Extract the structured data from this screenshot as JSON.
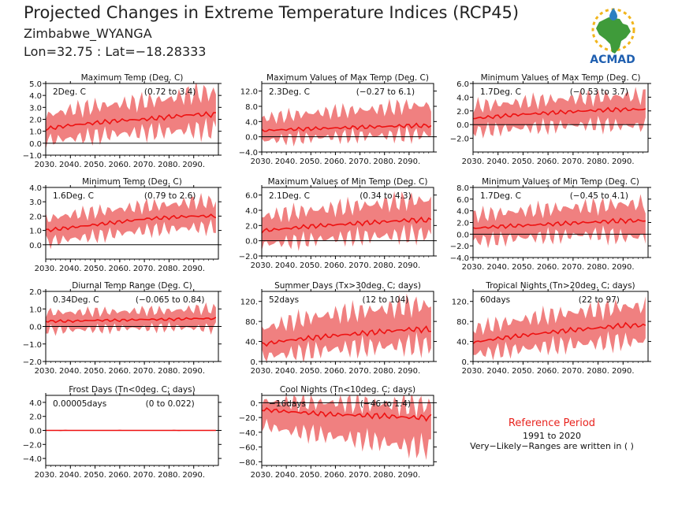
{
  "header": {
    "title": "Projected Changes in Extreme Temperature Indices (RCP45)",
    "location": "Zimbabwe_WYANGA",
    "coords": "Lon=32.75 : Lat=−18.28333"
  },
  "logo": {
    "text": "ACMAD",
    "icon": "africa-map-logo-icon",
    "colors": {
      "africa": "#3f9b3a",
      "sun": "#f1b51c",
      "drop": "#2c7fc1",
      "text": "#1f5fb0"
    }
  },
  "legend": {
    "title": "Reference Period",
    "years": "1991 to 2020",
    "note": "Very−Likely−Ranges are written in ( )"
  },
  "colors": {
    "band": "#f08080",
    "line": "#ee1111",
    "zero": "#000000",
    "title_red": "#e8231e"
  },
  "chart_data": [
    {
      "type": "area",
      "title": "Maximum Temp (Deg. C)",
      "summary": "2Deg. C",
      "range": "(0.72 to 3.4)",
      "x": [
        2030,
        2040,
        2050,
        2060,
        2070,
        2080,
        2090
      ],
      "x_tick_labels": [
        "2030.",
        "2040.",
        "2050.",
        "2060.",
        "2070.",
        "2080.",
        "2090."
      ],
      "ylim": [
        -1.0,
        5.0
      ],
      "y_ticks": [
        -1.0,
        0.0,
        1.0,
        2.0,
        3.0,
        4.0,
        5.0
      ],
      "y_tick_labels": [
        "−1.0",
        "0.0",
        "1.0",
        "2.0",
        "3.0",
        "4.0",
        "5.0"
      ],
      "series": [
        {
          "name": "mean",
          "values": [
            1.2,
            1.5,
            1.7,
            1.9,
            2.0,
            2.2,
            2.4
          ]
        },
        {
          "name": "lower",
          "values": [
            0.2,
            0.4,
            0.6,
            0.8,
            0.9,
            1.0,
            1.1
          ]
        },
        {
          "name": "upper",
          "values": [
            2.3,
            2.8,
            3.1,
            3.3,
            3.5,
            3.7,
            4.2
          ]
        }
      ]
    },
    {
      "type": "area",
      "title": "Maximum Values of Max Temp (Deg. C)",
      "summary": "2.3Deg. C",
      "range": "(−0.27 to 6.1)",
      "x": [
        2030,
        2040,
        2050,
        2060,
        2070,
        2080,
        2090
      ],
      "x_tick_labels": [
        "2030.",
        "2040.",
        "2050.",
        "2060.",
        "2070.",
        "2080.",
        "2090."
      ],
      "ylim": [
        -4.0,
        14.0
      ],
      "y_ticks": [
        -4.0,
        0.0,
        4.0,
        8.0,
        12.0
      ],
      "y_tick_labels": [
        "−4.0",
        "0.0",
        "4.0",
        "8.0",
        "12.0"
      ],
      "series": [
        {
          "name": "mean",
          "values": [
            1.6,
            1.9,
            2.1,
            2.3,
            2.5,
            2.7,
            2.9
          ]
        },
        {
          "name": "lower",
          "values": [
            -1.0,
            -0.6,
            -0.3,
            0.0,
            0.2,
            0.3,
            0.5
          ]
        },
        {
          "name": "upper",
          "values": [
            4.8,
            5.5,
            6.2,
            6.6,
            7.0,
            7.4,
            8.2
          ]
        }
      ]
    },
    {
      "type": "area",
      "title": "Minimum Values of Max Temp (Deg. C)",
      "summary": "1.7Deg. C",
      "range": "(−0.53 to 3.7)",
      "x": [
        2030,
        2040,
        2050,
        2060,
        2070,
        2080,
        2090
      ],
      "x_tick_labels": [
        "2030.",
        "2040.",
        "2050.",
        "2060.",
        "2070.",
        "2080.",
        "2090."
      ],
      "ylim": [
        -4.0,
        6.0
      ],
      "y_ticks": [
        -2.0,
        0.0,
        2.0,
        4.0,
        6.0
      ],
      "y_tick_labels": [
        "−2.0",
        "0.0",
        "2.0",
        "4.0",
        "6.0"
      ],
      "series": [
        {
          "name": "mean",
          "values": [
            0.9,
            1.2,
            1.5,
            1.7,
            1.9,
            2.1,
            2.2
          ]
        },
        {
          "name": "lower",
          "values": [
            -1.0,
            -0.7,
            -0.5,
            -0.3,
            -0.1,
            0.0,
            -0.2
          ]
        },
        {
          "name": "upper",
          "values": [
            2.7,
            3.0,
            3.3,
            3.6,
            3.8,
            4.0,
            4.2
          ]
        }
      ]
    },
    {
      "type": "area",
      "title": "Minimum Temp (Deg. C)",
      "summary": "1.6Deg. C",
      "range": "(0.79 to 2.6)",
      "x": [
        2030,
        2040,
        2050,
        2060,
        2070,
        2080,
        2090
      ],
      "x_tick_labels": [
        "2030.",
        "2040.",
        "2050.",
        "2060.",
        "2070.",
        "2080.",
        "2090."
      ],
      "ylim": [
        -1.0,
        4.0
      ],
      "y_ticks": [
        0.0,
        1.0,
        2.0,
        3.0,
        4.0
      ],
      "y_tick_labels": [
        "0.0",
        "1.0",
        "2.0",
        "3.0",
        "4.0"
      ],
      "series": [
        {
          "name": "mean",
          "values": [
            1.0,
            1.2,
            1.4,
            1.6,
            1.8,
            1.9,
            2.0
          ]
        },
        {
          "name": "lower",
          "values": [
            0.2,
            0.4,
            0.6,
            0.8,
            1.0,
            1.1,
            1.2
          ]
        },
        {
          "name": "upper",
          "values": [
            1.8,
            2.1,
            2.3,
            2.5,
            2.7,
            2.8,
            3.0
          ]
        }
      ]
    },
    {
      "type": "area",
      "title": "Maximum Values of Min Temp (Deg. C)",
      "summary": "2.1Deg. C",
      "range": "(0.34 to 4.3)",
      "x": [
        2030,
        2040,
        2050,
        2060,
        2070,
        2080,
        2090
      ],
      "x_tick_labels": [
        "2030.",
        "2040.",
        "2050.",
        "2060.",
        "2070.",
        "2080.",
        "2090."
      ],
      "ylim": [
        -2.0,
        7.0
      ],
      "y_ticks": [
        -2.0,
        0.0,
        2.0,
        4.0,
        6.0
      ],
      "y_tick_labels": [
        "−2.0",
        "0.0",
        "2.0",
        "4.0",
        "6.0"
      ],
      "series": [
        {
          "name": "mean",
          "values": [
            1.3,
            1.6,
            1.9,
            2.1,
            2.3,
            2.5,
            2.7
          ]
        },
        {
          "name": "lower",
          "values": [
            -0.5,
            -0.2,
            0.1,
            0.3,
            0.5,
            0.6,
            0.8
          ]
        },
        {
          "name": "upper",
          "values": [
            3.2,
            3.6,
            4.0,
            4.3,
            4.6,
            4.9,
            5.3
          ]
        }
      ]
    },
    {
      "type": "area",
      "title": "Minimum Values of Min Temp (Deg. C)",
      "summary": "1.7Deg. C",
      "range": "(−0.45 to 4.1)",
      "x": [
        2030,
        2040,
        2050,
        2060,
        2070,
        2080,
        2090
      ],
      "x_tick_labels": [
        "2030.",
        "2040.",
        "2050.",
        "2060.",
        "2070.",
        "2080.",
        "2090."
      ],
      "ylim": [
        -4.0,
        8.0
      ],
      "y_ticks": [
        -4.0,
        -2.0,
        0.0,
        2.0,
        4.0,
        6.0,
        8.0
      ],
      "y_tick_labels": [
        "−4.0",
        "−2.0",
        "0.0",
        "2.0",
        "4.0",
        "6.0",
        "8.0"
      ],
      "series": [
        {
          "name": "mean",
          "values": [
            1.0,
            1.3,
            1.5,
            1.7,
            1.9,
            2.1,
            2.3
          ]
        },
        {
          "name": "lower",
          "values": [
            -1.2,
            -0.9,
            -0.6,
            -0.4,
            -0.2,
            0.0,
            -0.5
          ]
        },
        {
          "name": "upper",
          "values": [
            3.2,
            3.6,
            4.0,
            4.3,
            4.6,
            4.8,
            5.2
          ]
        }
      ]
    },
    {
      "type": "area",
      "title": "Diurnal Temp Range (Deg. C)",
      "summary": "0.34Deg. C",
      "range": "(−0.065 to 0.84)",
      "x": [
        2030,
        2040,
        2050,
        2060,
        2070,
        2080,
        2090
      ],
      "x_tick_labels": [
        "2030.",
        "2040.",
        "2050.",
        "2060.",
        "2070.",
        "2080.",
        "2090."
      ],
      "ylim": [
        -2.0,
        2.0
      ],
      "y_ticks": [
        -2.0,
        -1.0,
        0.0,
        1.0,
        2.0
      ],
      "y_tick_labels": [
        "−2.0",
        "−1.0",
        "0.0",
        "1.0",
        "2.0"
      ],
      "series": [
        {
          "name": "mean",
          "values": [
            0.3,
            0.3,
            0.35,
            0.35,
            0.4,
            0.4,
            0.45
          ]
        },
        {
          "name": "lower",
          "values": [
            -0.2,
            -0.2,
            -0.15,
            -0.1,
            -0.1,
            -0.05,
            -0.1
          ]
        },
        {
          "name": "upper",
          "values": [
            0.8,
            0.8,
            0.85,
            0.85,
            0.9,
            0.9,
            1.0
          ]
        }
      ]
    },
    {
      "type": "area",
      "title": "Summer Days (Tx>30deg. C; days)",
      "summary": "52days",
      "range": "(12 to 104)",
      "x": [
        2030,
        2040,
        2050,
        2060,
        2070,
        2080,
        2090
      ],
      "x_tick_labels": [
        "2030.",
        "2040.",
        "2050.",
        "2060.",
        "2070.",
        "2080.",
        "2090."
      ],
      "ylim": [
        0,
        140
      ],
      "y_ticks": [
        0,
        40,
        80,
        120
      ],
      "y_tick_labels": [
        "0.",
        "40.",
        "80.",
        "120."
      ],
      "series": [
        {
          "name": "mean",
          "values": [
            34,
            42,
            47,
            52,
            56,
            60,
            64
          ]
        },
        {
          "name": "lower",
          "values": [
            10,
            15,
            20,
            25,
            28,
            30,
            32
          ]
        },
        {
          "name": "upper",
          "values": [
            65,
            78,
            88,
            95,
            100,
            105,
            112
          ]
        }
      ]
    },
    {
      "type": "area",
      "title": "Tropical Nights (Tn>20deg. C; days)",
      "summary": "60days",
      "range": "(22 to 97)",
      "x": [
        2030,
        2040,
        2050,
        2060,
        2070,
        2080,
        2090
      ],
      "x_tick_labels": [
        "2030.",
        "2040.",
        "2050.",
        "2060.",
        "2070.",
        "2080.",
        "2090."
      ],
      "ylim": [
        0,
        140
      ],
      "y_ticks": [
        0,
        40,
        80,
        120
      ],
      "y_tick_labels": [
        "0.",
        "40.",
        "80.",
        "120."
      ],
      "series": [
        {
          "name": "mean",
          "values": [
            38,
            46,
            52,
            58,
            63,
            67,
            72
          ]
        },
        {
          "name": "lower",
          "values": [
            15,
            20,
            25,
            30,
            34,
            37,
            40
          ]
        },
        {
          "name": "upper",
          "values": [
            65,
            75,
            84,
            92,
            98,
            103,
            110
          ]
        }
      ]
    },
    {
      "type": "area",
      "title": "Frost Days (Tn<0deg. C; days)",
      "summary": "0.00005days",
      "range": "(0 to 0.022)",
      "x": [
        2030,
        2040,
        2050,
        2060,
        2070,
        2080,
        2090
      ],
      "x_tick_labels": [
        "2030.",
        "2040.",
        "2050.",
        "2060.",
        "2070.",
        "2080.",
        "2090."
      ],
      "ylim": [
        -5.0,
        5.0
      ],
      "y_ticks": [
        -4.0,
        -2.0,
        0.0,
        2.0,
        4.0
      ],
      "y_tick_labels": [
        "−4.0",
        "−2.0",
        "0.0",
        "2.0",
        "4.0"
      ],
      "series": [
        {
          "name": "mean",
          "values": [
            0,
            0,
            0,
            0,
            0,
            0,
            0
          ]
        },
        {
          "name": "lower",
          "values": [
            0,
            0,
            0,
            0,
            0,
            0,
            0
          ]
        },
        {
          "name": "upper",
          "values": [
            0.02,
            0.02,
            0.02,
            0.02,
            0.02,
            0.02,
            0.02
          ]
        }
      ]
    },
    {
      "type": "area",
      "title": "Cool Nights (Tn<10deg. C; days)",
      "summary": "−16days",
      "range": "(−46 to 1.4)",
      "x": [
        2030,
        2040,
        2050,
        2060,
        2070,
        2080,
        2090
      ],
      "x_tick_labels": [
        "2030.",
        "2040.",
        "2050.",
        "2060.",
        "2070.",
        "2080.",
        "2090."
      ],
      "ylim": [
        -85,
        10
      ],
      "y_ticks": [
        -80,
        -60,
        -40,
        -20,
        0
      ],
      "y_tick_labels": [
        "−80.",
        "−60.",
        "−40.",
        "−20.",
        "0."
      ],
      "series": [
        {
          "name": "mean",
          "values": [
            -9,
            -12,
            -14,
            -16,
            -17,
            -18,
            -20
          ]
        },
        {
          "name": "lower",
          "values": [
            -30,
            -38,
            -42,
            -46,
            -50,
            -54,
            -60
          ]
        },
        {
          "name": "upper",
          "values": [
            2,
            1,
            0,
            0,
            -1,
            -2,
            -3
          ]
        }
      ]
    }
  ]
}
